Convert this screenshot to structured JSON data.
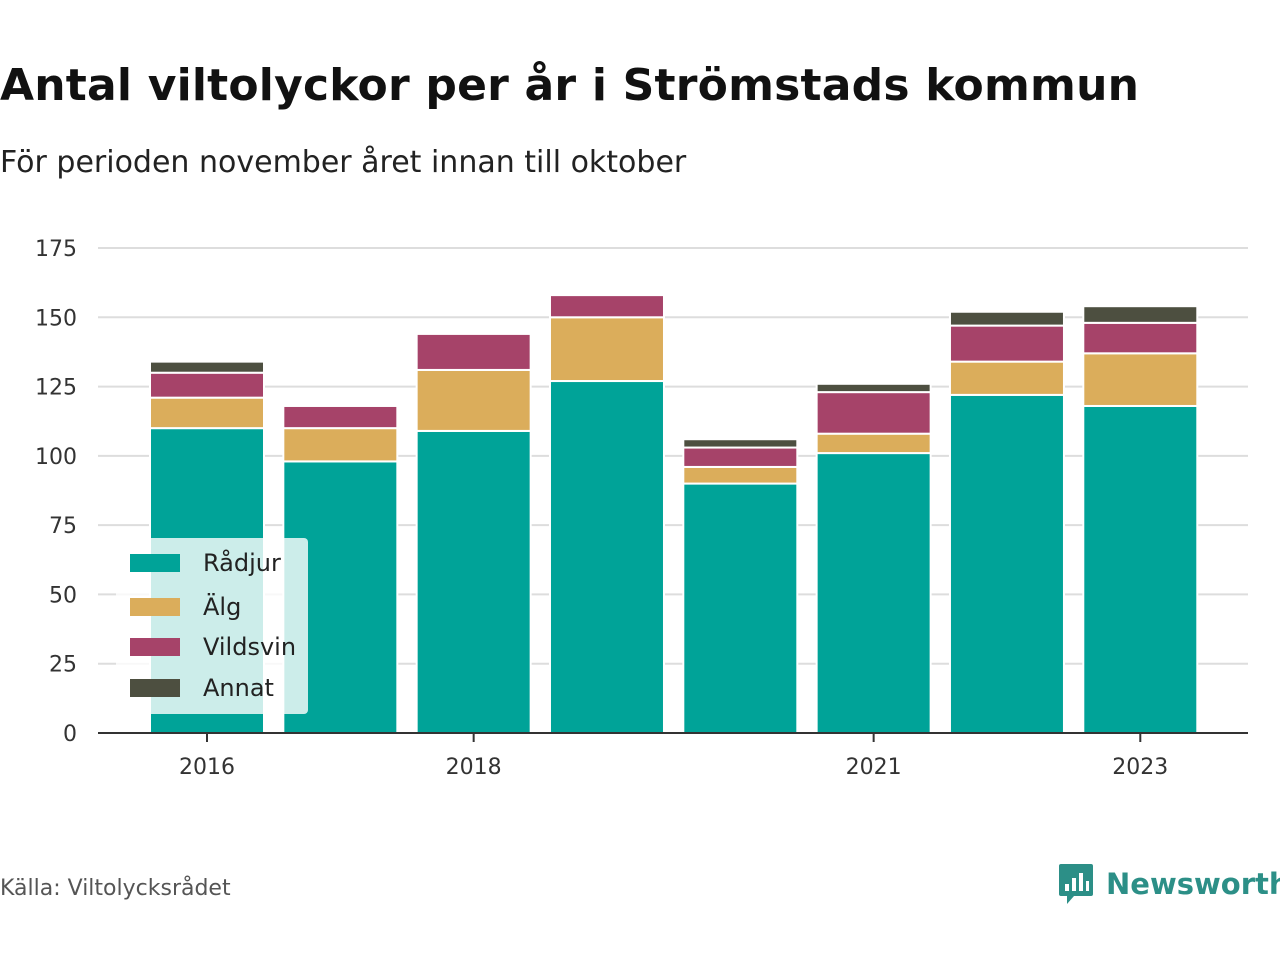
{
  "title": "Antal viltolyckor per år i Strömstads kommun",
  "subtitle": "För perioden november året innan till oktober",
  "source": "Källa: Viltolycksrådet",
  "brand": "Newsworthy",
  "colors": {
    "Rådjur": "#00a398",
    "Älg": "#dbad5b",
    "Vildsvin": "#a64369",
    "Annat": "#4d4f40",
    "brand": "#2c8f87"
  },
  "chart_data": {
    "type": "bar",
    "stacked": true,
    "categories": [
      "2016",
      "2017",
      "2018",
      "2019",
      "2020",
      "2021",
      "2022",
      "2023"
    ],
    "x_tick_labels": [
      "2016",
      "",
      "2018",
      "",
      "",
      "2021",
      "",
      "2023"
    ],
    "series": [
      {
        "name": "Rådjur",
        "values": [
          110,
          98,
          109,
          127,
          90,
          101,
          122,
          118
        ]
      },
      {
        "name": "Älg",
        "values": [
          11,
          12,
          22,
          23,
          6,
          7,
          12,
          19
        ]
      },
      {
        "name": "Vildsvin",
        "values": [
          9,
          8,
          13,
          8,
          7,
          15,
          13,
          11
        ]
      },
      {
        "name": "Annat",
        "values": [
          4,
          0,
          0,
          0,
          3,
          3,
          5,
          6
        ]
      }
    ],
    "yticks": [
      0,
      25,
      50,
      75,
      100,
      125,
      150,
      175
    ],
    "ylim": [
      0,
      175
    ],
    "grid": true,
    "legend_position": "bottom-left"
  }
}
